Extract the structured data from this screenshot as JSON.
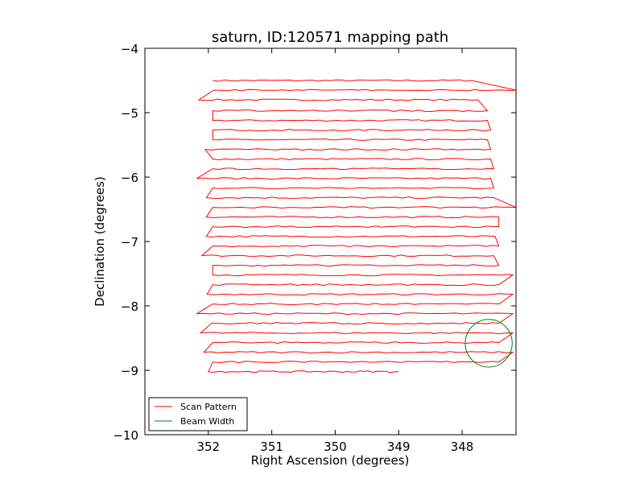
{
  "chart_data": {
    "type": "line",
    "title": "saturn, ID:120571 mapping path",
    "xlabel": "Right Ascension (degrees)",
    "ylabel": "Declination (degrees)",
    "xlim": [
      353.0,
      347.15
    ],
    "ylim": [
      -10,
      -4
    ],
    "x_inverted": true,
    "xticks": [
      352,
      351,
      350,
      349,
      348
    ],
    "xtick_labels": [
      "352",
      "351",
      "350",
      "349",
      "348"
    ],
    "yticks": [
      -4,
      -5,
      -6,
      -7,
      -8,
      -9,
      -10
    ],
    "ytick_labels": [
      "−4",
      "−5",
      "−6",
      "−7",
      "−8",
      "−9",
      "−10"
    ],
    "grid": false,
    "legend": {
      "placement": "lower-left",
      "entries": [
        {
          "label": "Scan Pattern",
          "color": "#ff0000"
        },
        {
          "label": "Beam Width",
          "color": "#008000"
        }
      ]
    },
    "series": [
      {
        "name": "Scan Pattern",
        "color": "#ff0000",
        "rows_dec": [
          -4.5,
          -4.65,
          -4.8,
          -4.97,
          -5.12,
          -5.27,
          -5.42,
          -5.57,
          -5.72,
          -5.87,
          -6.02,
          -6.17,
          -6.32,
          -6.47,
          -6.62,
          -6.77,
          -6.92,
          -7.07,
          -7.22,
          -7.37,
          -7.52,
          -7.67,
          -7.82,
          -7.97,
          -8.12,
          -8.27,
          -8.42,
          -8.57,
          -8.72,
          -8.87,
          -9.02
        ],
        "x_left": [
          351.93,
          351.91,
          352.15,
          351.93,
          351.93,
          351.93,
          351.93,
          352.05,
          351.93,
          351.93,
          352.18,
          351.93,
          352.03,
          351.93,
          352.03,
          351.93,
          352.03,
          351.93,
          352.1,
          351.93,
          351.93,
          351.93,
          352.02,
          351.93,
          352.18,
          351.95,
          352.12,
          351.93,
          352.07,
          351.93,
          352.0
        ],
        "x_right": [
          347.85,
          347.15,
          347.75,
          347.6,
          347.6,
          347.55,
          347.6,
          347.55,
          347.55,
          347.5,
          347.55,
          347.5,
          347.5,
          347.15,
          347.42,
          347.42,
          347.48,
          347.42,
          347.5,
          347.42,
          347.2,
          347.42,
          347.2,
          347.42,
          347.2,
          347.42,
          347.2,
          347.42,
          347.2,
          347.42,
          347.25
        ],
        "x_end": 349.0
      },
      {
        "name": "Beam Width",
        "color": "#008000",
        "type": "circle",
        "center_ra": 347.58,
        "center_dec": -8.58,
        "radius_deg": 0.37
      }
    ]
  }
}
